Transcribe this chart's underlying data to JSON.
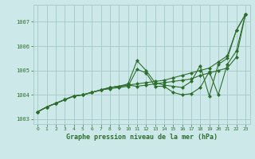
{
  "title": "Graphe pression niveau de la mer (hPa)",
  "bg_color": "#cce8e8",
  "grid_color": "#aacccc",
  "line_color": "#2d6e2d",
  "marker_color": "#2d6e2d",
  "xlim": [
    -0.5,
    23.5
  ],
  "ylim": [
    1002.8,
    1007.7
  ],
  "yticks": [
    1003,
    1004,
    1005,
    1006,
    1007
  ],
  "xticks": [
    0,
    1,
    2,
    3,
    4,
    5,
    6,
    7,
    8,
    9,
    10,
    11,
    12,
    13,
    14,
    15,
    16,
    17,
    18,
    19,
    20,
    21,
    22,
    23
  ],
  "series1": [
    1003.3,
    1003.5,
    1003.65,
    1003.8,
    1003.95,
    1004.0,
    1004.1,
    1004.2,
    1004.25,
    1004.3,
    1004.35,
    1005.05,
    1004.9,
    1004.35,
    1004.35,
    1004.1,
    1004.0,
    1004.05,
    1004.3,
    1004.95,
    1004.0,
    1005.25,
    1005.8,
    1007.3
  ],
  "series2": [
    1003.3,
    1003.5,
    1003.65,
    1003.8,
    1003.95,
    1004.0,
    1004.1,
    1004.2,
    1004.3,
    1004.35,
    1004.4,
    1004.35,
    1004.4,
    1004.45,
    1004.5,
    1004.55,
    1004.6,
    1004.65,
    1004.8,
    1004.9,
    1005.0,
    1005.1,
    1005.55,
    1007.3
  ],
  "series3": [
    1003.3,
    1003.5,
    1003.65,
    1003.8,
    1003.95,
    1004.0,
    1004.1,
    1004.2,
    1004.3,
    1004.35,
    1004.4,
    1004.45,
    1004.5,
    1004.55,
    1004.6,
    1004.7,
    1004.8,
    1004.9,
    1005.0,
    1005.1,
    1005.35,
    1005.6,
    1006.65,
    1007.3
  ],
  "series4": [
    1003.3,
    1003.5,
    1003.65,
    1003.8,
    1003.95,
    1004.0,
    1004.1,
    1004.2,
    1004.3,
    1004.35,
    1004.45,
    1005.4,
    1005.0,
    1004.5,
    1004.4,
    1004.35,
    1004.3,
    1004.55,
    1005.2,
    1003.95,
    1005.25,
    1005.5,
    1006.65,
    1007.3
  ]
}
